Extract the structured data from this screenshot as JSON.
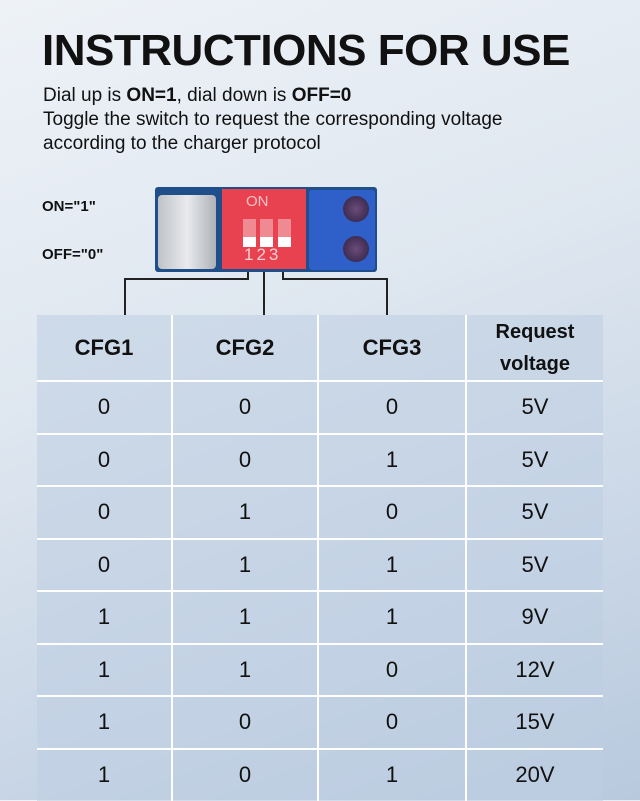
{
  "title": "INSTRUCTIONS FOR USE",
  "description": {
    "line1_a": "Dial up is ",
    "line1_on": "ON=1",
    "line1_b": ", dial down is ",
    "line1_off": "OFF=0",
    "line2": "Toggle the switch to request the corresponding voltage",
    "line3": "according to the charger protocol"
  },
  "legend": {
    "on": "ON=\"1\"",
    "off": "OFF=\"0\""
  },
  "switch": {
    "on_label": "ON",
    "numbers": "123"
  },
  "table": {
    "headers": [
      "CFG1",
      "CFG2",
      "CFG3",
      "Request voltage"
    ],
    "rows": [
      [
        "0",
        "0",
        "0",
        "5V"
      ],
      [
        "0",
        "0",
        "1",
        "5V"
      ],
      [
        "0",
        "1",
        "0",
        "5V"
      ],
      [
        "0",
        "1",
        "1",
        "5V"
      ],
      [
        "1",
        "1",
        "1",
        "9V"
      ],
      [
        "1",
        "1",
        "0",
        "12V"
      ],
      [
        "1",
        "0",
        "0",
        "15V"
      ],
      [
        "1",
        "0",
        "1",
        "20V"
      ]
    ]
  }
}
